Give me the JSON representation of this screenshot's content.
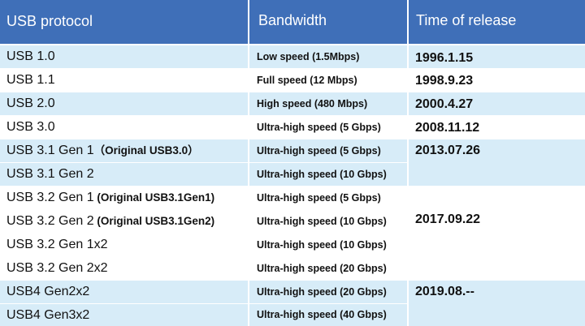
{
  "headers": {
    "protocol": "USB protocol",
    "bandwidth": "Bandwidth",
    "release": "Time of release"
  },
  "rows": [
    {
      "protocol": "USB 1.0",
      "note": "",
      "bandwidth": "Low speed (1.5Mbps)"
    },
    {
      "protocol": "USB 1.1",
      "note": "",
      "bandwidth": "Full speed (12 Mbps)"
    },
    {
      "protocol": "USB 2.0",
      "note": "",
      "bandwidth": "High speed (480 Mbps)"
    },
    {
      "protocol": "USB 3.0",
      "note": "",
      "bandwidth": "Ultra-high speed (5 Gbps)"
    },
    {
      "protocol": "USB 3.1 Gen 1",
      "note": "（Original USB3.0）",
      "bandwidth": "Ultra-high speed (5 Gbps)"
    },
    {
      "protocol": "USB 3.1 Gen 2",
      "note": "",
      "bandwidth": "Ultra-high speed (10 Gbps)"
    },
    {
      "protocol": "USB 3.2 Gen 1",
      "note": " (Original USB3.1Gen1)",
      "bandwidth": "Ultra-high speed (5 Gbps)"
    },
    {
      "protocol": "USB 3.2 Gen 2",
      "note": " (Original USB3.1Gen2)",
      "bandwidth": "Ultra-high speed (10 Gbps)"
    },
    {
      "protocol": "USB 3.2 Gen 1x2",
      "note": "",
      "bandwidth": "Ultra-high speed (10 Gbps)"
    },
    {
      "protocol": "USB 3.2 Gen 2x2",
      "note": "",
      "bandwidth": "Ultra-high speed (20 Gbps)"
    },
    {
      "protocol": "USB4 Gen2x2",
      "note": "",
      "bandwidth": "Ultra-high speed (20 Gbps)"
    },
    {
      "protocol": "USB4 Gen3x2",
      "note": "",
      "bandwidth": "Ultra-high speed (40 Gbps)"
    }
  ],
  "releases": [
    "1996.1.15",
    "1998.9.23",
    "2000.4.27",
    "2008.11.12",
    "2013.07.26",
    "2017.09.22",
    "2019.08.--"
  ],
  "colors": {
    "header_bg": "#3f6fb8",
    "row_tint": "#d7ecf8",
    "header_text": "#ffffff"
  }
}
